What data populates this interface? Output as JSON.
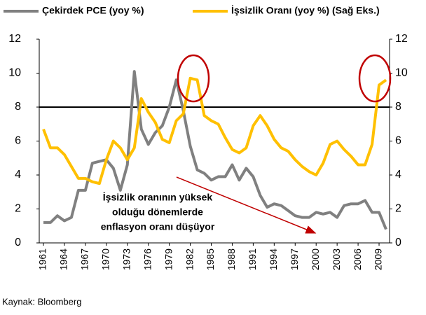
{
  "chart_data": {
    "type": "line",
    "categories": [
      "1961",
      null,
      null,
      "1964",
      null,
      null,
      "1967",
      null,
      null,
      "1970",
      null,
      null,
      "1973",
      null,
      null,
      "1976",
      null,
      null,
      "1979",
      null,
      null,
      "1982",
      null,
      null,
      "1985",
      null,
      null,
      "1988",
      null,
      null,
      "1991",
      null,
      null,
      "1994",
      null,
      null,
      "1997",
      null,
      null,
      "2000",
      null,
      null,
      "2003",
      null,
      null,
      "2006",
      null,
      null,
      "2009",
      null
    ],
    "series": [
      {
        "name": "Çekirdek PCE (yoy %)",
        "color": "#808080",
        "values": [
          1.2,
          1.2,
          1.6,
          1.3,
          1.5,
          3.1,
          3.1,
          4.7,
          4.8,
          4.9,
          4.4,
          3.1,
          4.6,
          10.1,
          6.7,
          5.8,
          6.5,
          6.9,
          8.0,
          9.6,
          7.8,
          5.7,
          4.3,
          4.1,
          3.7,
          3.9,
          3.9,
          4.6,
          3.7,
          4.4,
          3.9,
          2.8,
          2.1,
          2.3,
          2.2,
          1.9,
          1.6,
          1.5,
          1.5,
          1.8,
          1.7,
          1.8,
          1.5,
          2.2,
          2.3,
          2.3,
          2.5,
          1.8,
          1.8,
          0.8
        ]
      },
      {
        "name": "İşsizlik Oranı (yoy %) (Sağ Eks.)",
        "color": "#FFC000",
        "axis": "y2",
        "values": [
          6.7,
          5.6,
          5.6,
          5.2,
          4.5,
          3.8,
          3.8,
          3.6,
          3.5,
          4.9,
          6.0,
          5.6,
          4.9,
          5.6,
          8.5,
          7.7,
          7.1,
          6.1,
          5.9,
          7.2,
          7.6,
          9.7,
          9.6,
          7.5,
          7.2,
          7.0,
          6.2,
          5.5,
          5.3,
          5.6,
          6.9,
          7.5,
          6.9,
          6.1,
          5.6,
          5.4,
          4.9,
          4.5,
          4.2,
          4.0,
          4.7,
          5.8,
          6.0,
          5.5,
          5.1,
          4.6,
          4.6,
          5.8,
          9.3,
          9.6
        ]
      }
    ],
    "ylim": [
      0,
      12
    ],
    "yticks": [
      0,
      2,
      4,
      6,
      8,
      10,
      12
    ],
    "y2lim": [
      0,
      12
    ],
    "y2ticks": [
      0,
      2,
      4,
      6,
      8,
      10,
      12
    ],
    "reference_line": 8,
    "reference_color": "#000000",
    "annotation": [
      "İşsizlik oranının yüksek",
      "olduğu dönemlerde",
      "enflasyon oranı düşüyor"
    ],
    "source": "Kaynak: Bloomberg"
  }
}
